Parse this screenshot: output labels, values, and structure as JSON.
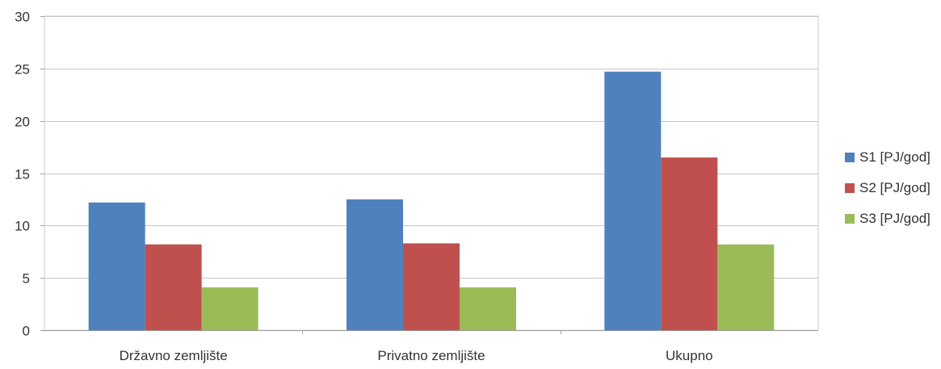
{
  "chart_data": {
    "type": "bar",
    "title": "",
    "xlabel": "",
    "ylabel": "",
    "categories": [
      "Državno zemljište",
      "Privatno zemljište",
      "Ukupno"
    ],
    "series": [
      {
        "name": "S1 [PJ/god]",
        "color": "#4f81bd",
        "values": [
          12.2,
          12.5,
          24.7
        ]
      },
      {
        "name": "S2 [PJ/god]",
        "color": "#c0504d",
        "values": [
          8.2,
          8.3,
          16.5
        ]
      },
      {
        "name": "S3 [PJ/god]",
        "color": "#9bbb59",
        "values": [
          4.1,
          4.1,
          8.2
        ]
      }
    ],
    "ylim": [
      0,
      30
    ],
    "yticks": [
      0,
      5,
      10,
      15,
      20,
      25,
      30
    ],
    "grid": true,
    "legend_position": "right"
  }
}
